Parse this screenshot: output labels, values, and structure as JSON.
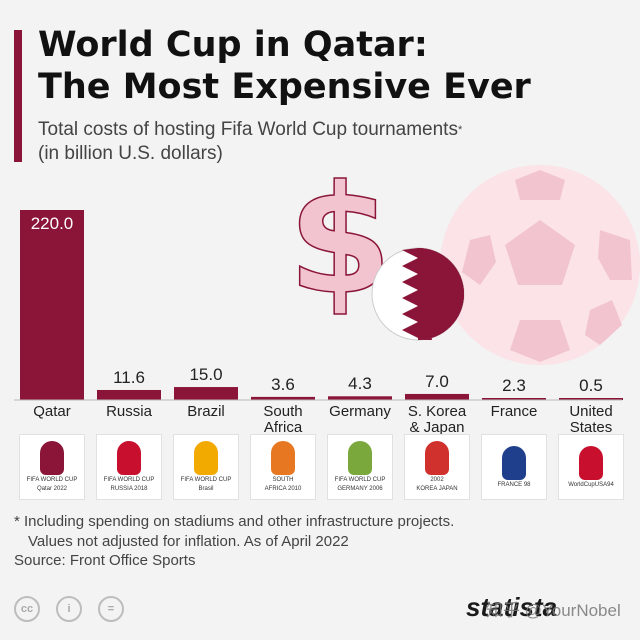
{
  "header": {
    "title_line1": "World Cup in Qatar:",
    "title_line2": "The Most Expensive Ever",
    "subtitle_line1": "Total costs of hosting Fifa World Cup tournaments",
    "subtitle_mark": "*",
    "subtitle_line2": "(in billion U.S. dollars)"
  },
  "chart_data": {
    "type": "bar",
    "categories": [
      "Qatar",
      "Russia",
      "Brazil",
      "South Africa",
      "Germany",
      "S. Korea & Japan",
      "France",
      "United States"
    ],
    "category_lines": [
      [
        "Qatar"
      ],
      [
        "Russia"
      ],
      [
        "Brazil"
      ],
      [
        "South",
        "Africa"
      ],
      [
        "Germany"
      ],
      [
        "S. Korea",
        "& Japan"
      ],
      [
        "France"
      ],
      [
        "United",
        "States"
      ]
    ],
    "values": [
      220.0,
      11.6,
      15.0,
      3.6,
      4.3,
      7.0,
      2.3,
      0.5
    ],
    "value_labels": [
      "220.0",
      "11.6",
      "15.0",
      "3.6",
      "4.3",
      "7.0",
      "2.3",
      "0.5"
    ],
    "ylim": [
      0,
      220
    ],
    "bar_color": "#8b1538",
    "grid": false
  },
  "logos": [
    {
      "icon": "trophy-icon",
      "lines": [
        "FIFA WORLD CUP",
        "Qatar 2022"
      ],
      "color": "#8b1538"
    },
    {
      "icon": "trophy-icon",
      "lines": [
        "FIFA WORLD CUP",
        "RUSSIA 2018"
      ],
      "color": "#c8102e"
    },
    {
      "icon": "hands-trophy-icon",
      "lines": [
        "FIFA WORLD CUP",
        "Brasil"
      ],
      "color": "#f2a900"
    },
    {
      "icon": "football-icon",
      "lines": [
        "SOUTH",
        "AFRICA 2010"
      ],
      "color": "#e87722"
    },
    {
      "icon": "smiley-icon",
      "lines": [
        "FIFA WORLD CUP",
        "GERMANY 2006"
      ],
      "color": "#7aa83c"
    },
    {
      "icon": "trophy-icon",
      "lines": [
        "2002",
        "KOREA JAPAN"
      ],
      "color": "#d0312d"
    },
    {
      "icon": "ball-icon",
      "lines": [
        "FRANCE 98"
      ],
      "color": "#1f3f8c"
    },
    {
      "icon": "ball-icon",
      "lines": [
        "WorldCupUSA94"
      ],
      "color": "#c8102e"
    }
  ],
  "footnote": {
    "line1": "* Including spending on stadiums and other infrastructure projects.",
    "line2": "Values not adjusted for inflation. As of April 2022"
  },
  "source": "Source: Front Office Sports",
  "footer": {
    "cc_icons": [
      "cc",
      "i",
      "="
    ],
    "brand": "statista",
    "watermark": "知乎 @YourNobel"
  },
  "colors": {
    "accent": "#8b1538",
    "background": "#f3f3f3",
    "decor_pink": "#f2c4cf"
  }
}
